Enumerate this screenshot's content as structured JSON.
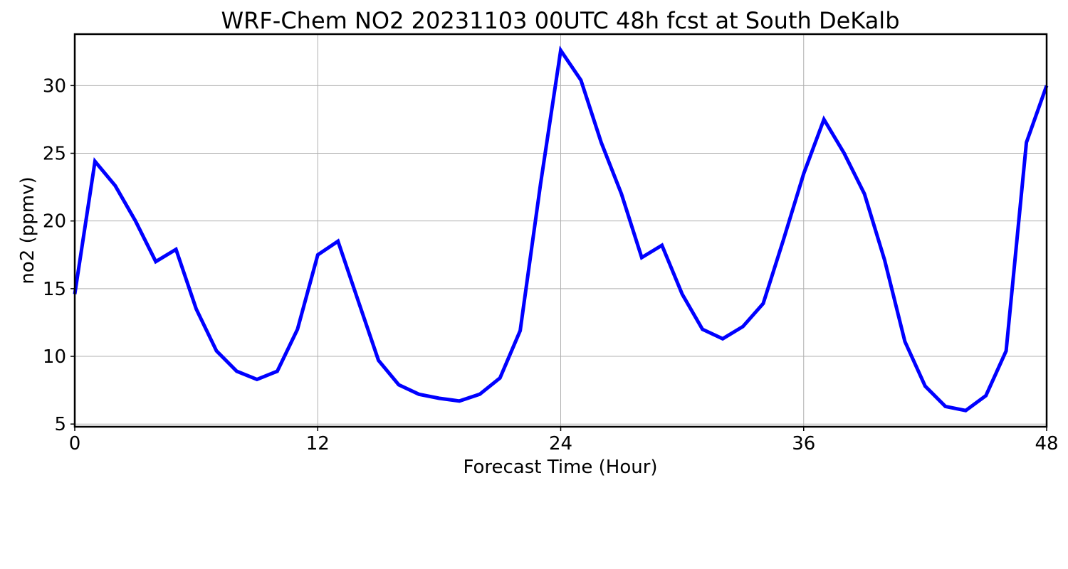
{
  "chart_data": {
    "type": "line",
    "title": "WRF-Chem NO2  20231103 00UTC 48h fcst at South DeKalb",
    "xlabel": "Forecast Time (Hour)",
    "ylabel": "no2  (ppmv)",
    "xlim": [
      0,
      48
    ],
    "ylim": [
      4.8,
      33.8
    ],
    "xticks": [
      0,
      12,
      24,
      36,
      48
    ],
    "yticks": [
      5,
      10,
      15,
      20,
      25,
      30
    ],
    "grid": true,
    "series": [
      {
        "color": "#0000ff",
        "x": [
          0,
          1,
          2,
          3,
          4,
          5,
          6,
          7,
          8,
          9,
          10,
          11,
          12,
          13,
          14,
          15,
          16,
          17,
          18,
          19,
          20,
          21,
          22,
          23,
          24,
          25,
          26,
          27,
          28,
          29,
          30,
          31,
          32,
          33,
          34,
          35,
          36,
          37,
          38,
          39,
          40,
          41,
          42,
          43,
          44,
          45,
          46,
          47,
          48
        ],
        "values": [
          14.6,
          24.4,
          22.6,
          20.0,
          17.0,
          17.9,
          13.5,
          10.4,
          8.9,
          8.3,
          8.9,
          12.0,
          17.5,
          18.5,
          14.1,
          9.7,
          7.9,
          7.2,
          6.9,
          6.7,
          7.2,
          8.4,
          11.9,
          22.7,
          32.6,
          30.4,
          25.8,
          22.0,
          17.3,
          18.2,
          14.6,
          12.0,
          11.3,
          12.2,
          13.9,
          18.6,
          23.5,
          27.5,
          25.0,
          22.0,
          17.1,
          11.1,
          7.8,
          6.3,
          6.0,
          7.1,
          10.4,
          25.8,
          30.0
        ]
      }
    ]
  }
}
